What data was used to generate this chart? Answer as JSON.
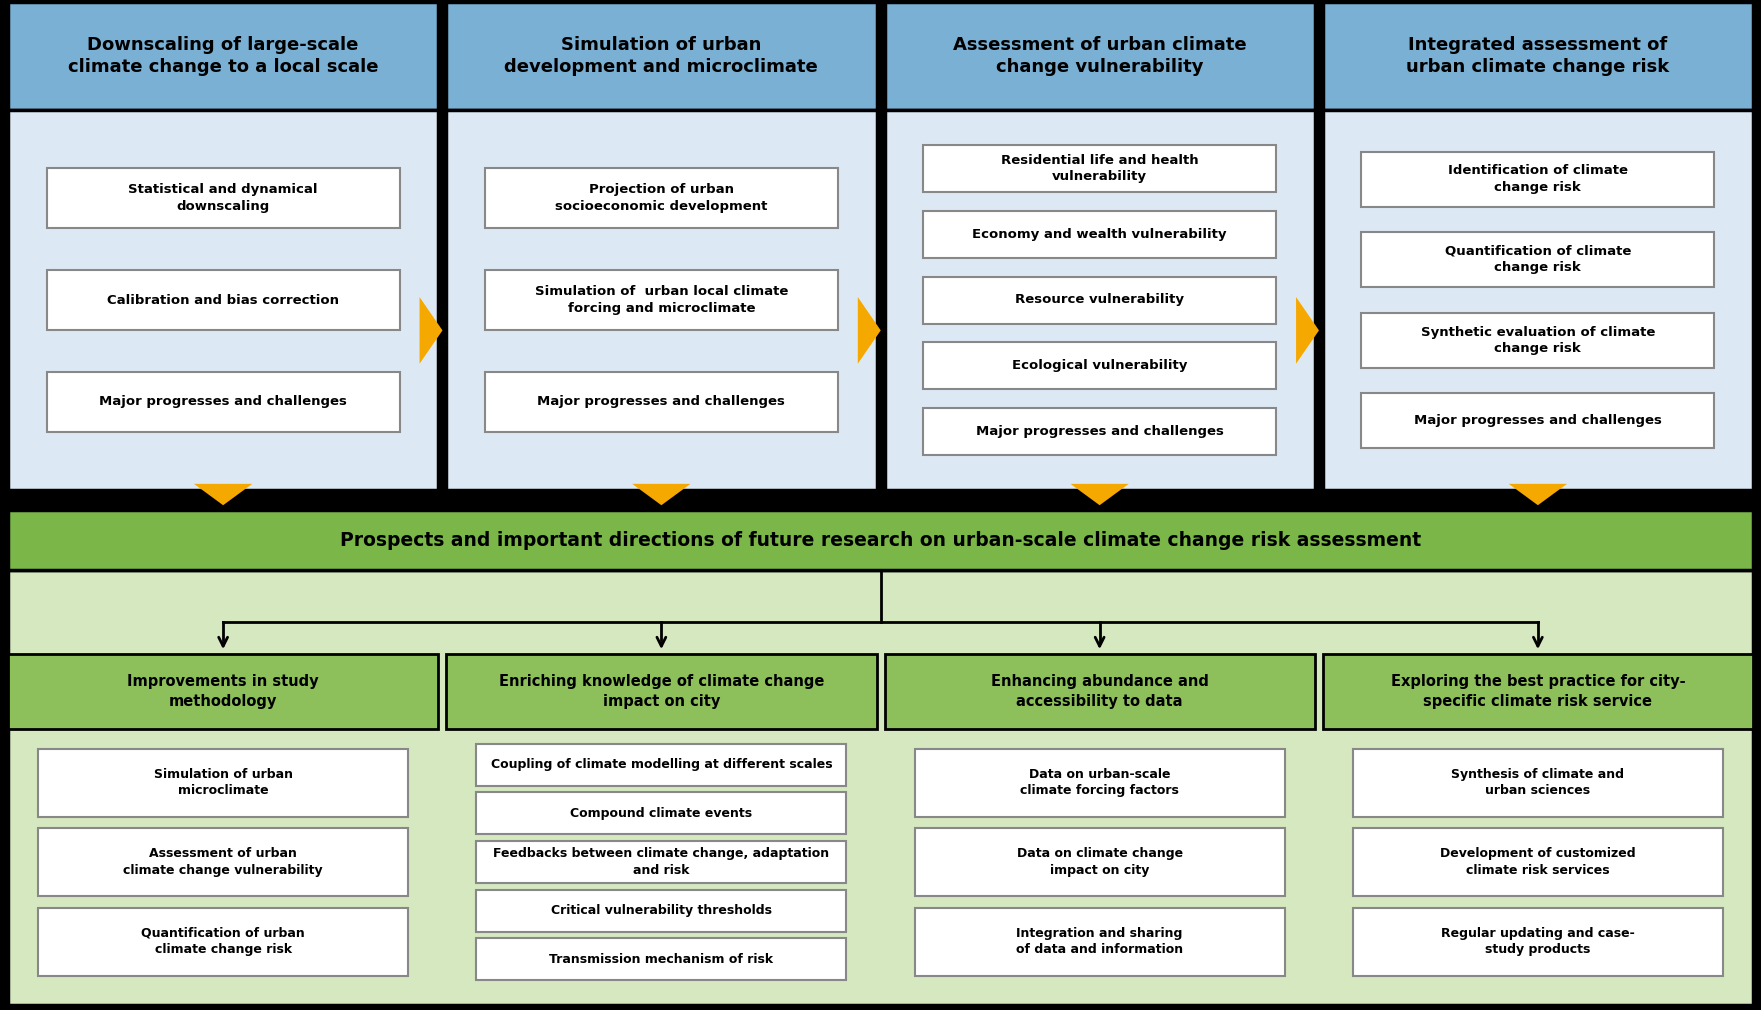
{
  "bg_color": "#000000",
  "blue_header_bg": "#7ab0d4",
  "blue_box_bg": "#dce9f5",
  "white_box_bg": "#ffffff",
  "green_banner_bg": "#7ab648",
  "green_sub_bg": "#d5e8c0",
  "green_header_item_bg": "#9dc97a",
  "arrow_color": "#f5a800",
  "col1_header": "Downscaling of large-scale\nclimate change to a local scale",
  "col2_header": "Simulation of urban\ndevelopment and microclimate",
  "col3_header": "Assessment of urban climate\nchange vulnerability",
  "col4_header": "Integrated assessment of\nurban climate change risk",
  "col1_items": [
    "Statistical and dynamical\ndownscaling",
    "Calibration and bias correction",
    "Major progresses and challenges"
  ],
  "col2_items": [
    "Projection of urban\nsocioeconomic development",
    "Simulation of  urban local climate\nforcing and microclimate",
    "Major progresses and challenges"
  ],
  "col3_items": [
    "Residential life and health\nvulnerability",
    "Economy and wealth vulnerability",
    "Resource vulnerability",
    "Ecological vulnerability",
    "Major progresses and challenges"
  ],
  "col4_items": [
    "Identification of climate\nchange risk",
    "Quantification of climate\nchange risk",
    "Synthetic evaluation of climate\nchange risk",
    "Major progresses and challenges"
  ],
  "green_banner": "Prospects and important directions of future research on urban-scale climate change risk assessment",
  "bottom_col1_header": "Improvements in study\nmethodology",
  "bottom_col2_header": "Enriching knowledge of climate change\nimpact on city",
  "bottom_col3_header": "Enhancing abundance and\naccessibility to data",
  "bottom_col4_header": "Exploring the best practice for city-\nspecific climate risk service",
  "bottom_col1_items": [
    "Simulation of urban\nmicroclimate",
    "Assessment of urban\nclimate change vulnerability",
    "Quantification of urban\nclimate change risk"
  ],
  "bottom_col2_items": [
    "Coupling of climate modelling at different scales",
    "Compound climate events",
    "Feedbacks between climate change, adaptation\nand risk",
    "Critical vulnerability thresholds",
    "Transmission mechanism of risk"
  ],
  "bottom_col3_items": [
    "Data on urban-scale\nclimate forcing factors",
    "Data on climate change\nimpact on city",
    "Integration and sharing\nof data and information"
  ],
  "bottom_col4_items": [
    "Synthesis of climate and\nurban sciences",
    "Development of customized\nclimate risk services",
    "Regular updating and case-\nstudy products"
  ]
}
